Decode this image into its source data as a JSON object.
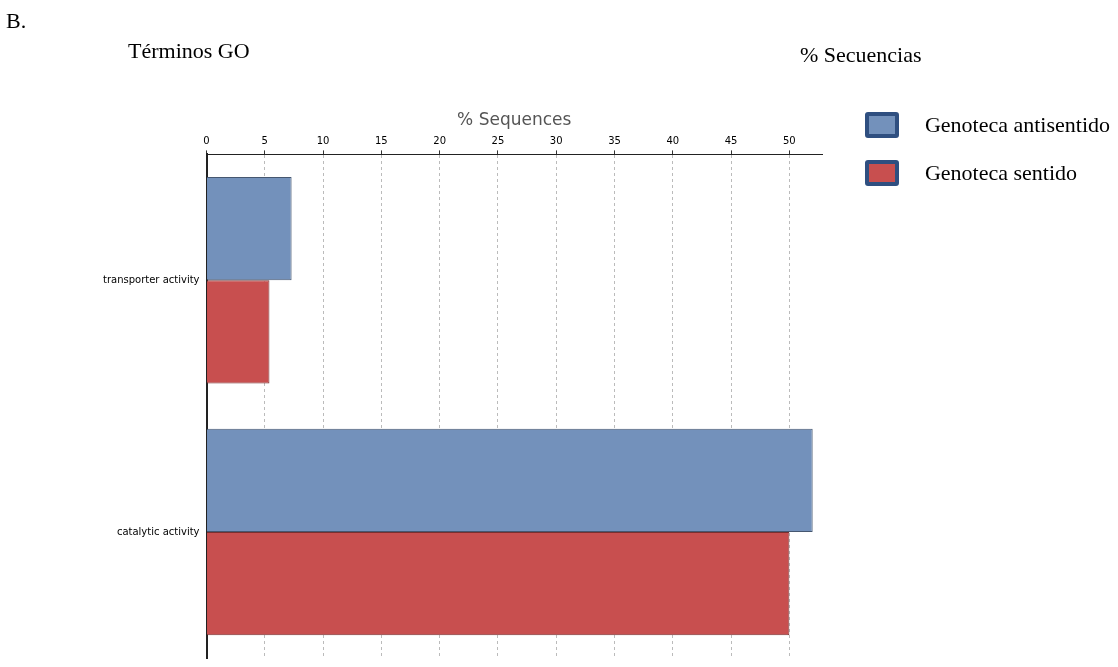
{
  "chart_data": {
    "type": "bar",
    "orientation": "horizontal",
    "title": "B.",
    "xlabel": "% Sequences",
    "annotations": [
      "Términos GO",
      "% Secuencias"
    ],
    "categories": [
      "transporter activity",
      "catalytic activity"
    ],
    "series": [
      {
        "name": "Genoteca antisentido",
        "color": "#7391bb",
        "values": [
          7.3,
          52
        ]
      },
      {
        "name": "Genoteca sentido",
        "color": "#c84f4f",
        "values": [
          5.4,
          50
        ]
      }
    ],
    "xlim": [
      0,
      52.8
    ],
    "xticks": [
      0,
      5,
      10,
      15,
      20,
      25,
      30,
      35,
      40,
      45,
      50
    ],
    "grid": "x",
    "legend": "top right"
  }
}
